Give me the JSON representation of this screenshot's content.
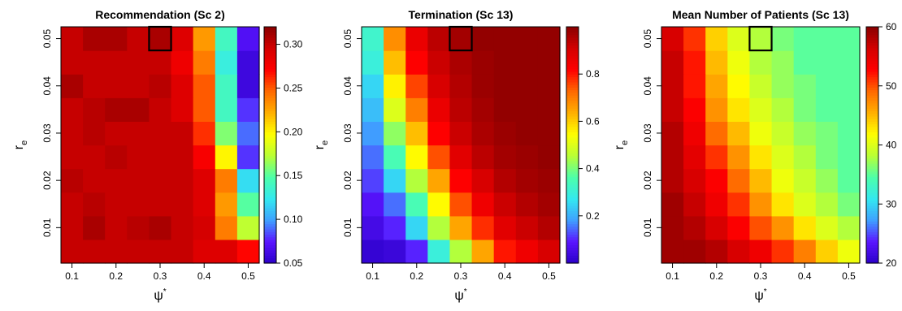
{
  "colors": {
    "colormap": [
      "#2b00c8",
      "#5a14ff",
      "#3fa0ff",
      "#33e8f0",
      "#4dffaa",
      "#b8ff36",
      "#ffff00",
      "#ffb000",
      "#ff6a00",
      "#ff0000",
      "#d40000",
      "#8b0000"
    ],
    "highlight_box": "#000000"
  },
  "chart_data": [
    {
      "type": "heatmap",
      "title": "Recommendation (Sc 2)",
      "xlabel": "ψ*",
      "ylabel": "r_e",
      "ylabel_main": "r",
      "ylabel_sub": "e",
      "x_values": [
        0.1,
        0.15,
        0.2,
        0.25,
        0.3,
        0.35,
        0.4,
        0.45,
        0.5
      ],
      "y_values": [
        0.005,
        0.01,
        0.015,
        0.02,
        0.025,
        0.03,
        0.035,
        0.04,
        0.045,
        0.05
      ],
      "x_ticks": [
        "0.1",
        "0.2",
        "0.3",
        "0.4",
        "0.5"
      ],
      "y_ticks": [
        "0.01",
        "0.02",
        "0.03",
        "0.04",
        "0.05"
      ],
      "z_range": [
        0.05,
        0.32
      ],
      "colorbar_ticks": [
        "0.05",
        "0.10",
        "0.15",
        "0.20",
        "0.25",
        "0.30"
      ],
      "highlight": {
        "x": 0.3,
        "y": 0.05
      },
      "z": [
        [
          0.3,
          0.3,
          0.3,
          0.3,
          0.3,
          0.3,
          0.29,
          0.29,
          0.27
        ],
        [
          0.3,
          0.31,
          0.3,
          0.305,
          0.31,
          0.3,
          0.295,
          0.24,
          0.175
        ],
        [
          0.3,
          0.305,
          0.3,
          0.3,
          0.3,
          0.3,
          0.29,
          0.23,
          0.15
        ],
        [
          0.305,
          0.3,
          0.3,
          0.3,
          0.3,
          0.3,
          0.29,
          0.24,
          0.12
        ],
        [
          0.3,
          0.3,
          0.305,
          0.3,
          0.3,
          0.3,
          0.275,
          0.2,
          0.08
        ],
        [
          0.3,
          0.305,
          0.3,
          0.3,
          0.3,
          0.3,
          0.26,
          0.16,
          0.09
        ],
        [
          0.3,
          0.305,
          0.31,
          0.31,
          0.3,
          0.29,
          0.25,
          0.14,
          0.08
        ],
        [
          0.31,
          0.3,
          0.3,
          0.3,
          0.305,
          0.29,
          0.25,
          0.14,
          0.06
        ],
        [
          0.3,
          0.3,
          0.3,
          0.3,
          0.3,
          0.28,
          0.24,
          0.13,
          0.06
        ],
        [
          0.3,
          0.31,
          0.31,
          0.3,
          0.31,
          0.29,
          0.23,
          0.14,
          0.07
        ]
      ]
    },
    {
      "type": "heatmap",
      "title": "Termination (Sc 13)",
      "xlabel": "ψ*",
      "ylabel": "r_e",
      "ylabel_main": "r",
      "ylabel_sub": "e",
      "x_values": [
        0.1,
        0.15,
        0.2,
        0.25,
        0.3,
        0.35,
        0.4,
        0.45,
        0.5
      ],
      "y_values": [
        0.005,
        0.01,
        0.015,
        0.02,
        0.025,
        0.03,
        0.035,
        0.04,
        0.045,
        0.05
      ],
      "x_ticks": [
        "0.1",
        "0.2",
        "0.3",
        "0.4",
        "0.5"
      ],
      "y_ticks": [
        "0.01",
        "0.02",
        "0.03",
        "0.04",
        "0.05"
      ],
      "z_range": [
        0.0,
        1.0
      ],
      "colorbar_ticks": [
        "0.2",
        "0.4",
        "0.6",
        "0.8"
      ],
      "highlight": {
        "x": 0.3,
        "y": 0.05
      },
      "z": [
        [
          0.02,
          0.03,
          0.1,
          0.3,
          0.45,
          0.65,
          0.8,
          0.85,
          0.9
        ],
        [
          0.05,
          0.1,
          0.25,
          0.45,
          0.65,
          0.78,
          0.88,
          0.92,
          0.95
        ],
        [
          0.08,
          0.15,
          0.35,
          0.55,
          0.75,
          0.85,
          0.92,
          0.95,
          0.97
        ],
        [
          0.12,
          0.25,
          0.45,
          0.65,
          0.82,
          0.9,
          0.95,
          0.97,
          0.98
        ],
        [
          0.15,
          0.35,
          0.55,
          0.75,
          0.88,
          0.94,
          0.97,
          0.98,
          0.99
        ],
        [
          0.18,
          0.42,
          0.62,
          0.82,
          0.92,
          0.96,
          0.98,
          0.99,
          0.99
        ],
        [
          0.22,
          0.5,
          0.7,
          0.86,
          0.94,
          0.97,
          0.99,
          0.99,
          0.99
        ],
        [
          0.25,
          0.56,
          0.76,
          0.9,
          0.95,
          0.98,
          0.99,
          0.99,
          0.99
        ],
        [
          0.3,
          0.62,
          0.82,
          0.92,
          0.96,
          0.98,
          0.99,
          0.99,
          0.99
        ],
        [
          0.32,
          0.68,
          0.86,
          0.94,
          0.97,
          0.99,
          0.99,
          0.99,
          0.99
        ]
      ]
    },
    {
      "type": "heatmap",
      "title": "Mean Number of Patients (Sc 13)",
      "xlabel": "ψ*",
      "ylabel": "r_e",
      "ylabel_main": "r",
      "ylabel_sub": "e",
      "x_values": [
        0.1,
        0.15,
        0.2,
        0.25,
        0.3,
        0.35,
        0.4,
        0.45,
        0.5
      ],
      "y_values": [
        0.005,
        0.01,
        0.015,
        0.02,
        0.025,
        0.03,
        0.035,
        0.04,
        0.045,
        0.05
      ],
      "x_ticks": [
        "0.1",
        "0.2",
        "0.3",
        "0.4",
        "0.5"
      ],
      "y_ticks": [
        "0.01",
        "0.02",
        "0.03",
        "0.04",
        "0.05"
      ],
      "z_range": [
        20,
        60
      ],
      "colorbar_ticks": [
        "20",
        "30",
        "40",
        "50",
        "60"
      ],
      "highlight": {
        "x": 0.3,
        "y": 0.05
      },
      "z": [
        [
          59,
          59,
          58,
          56,
          54,
          51,
          48,
          44,
          41
        ],
        [
          59,
          58,
          56,
          53,
          50,
          47,
          43,
          40,
          38
        ],
        [
          59,
          57,
          54,
          51,
          47,
          43,
          40,
          38,
          36
        ],
        [
          58,
          56,
          53,
          49,
          45,
          41,
          39,
          37,
          35
        ],
        [
          58,
          55,
          51,
          47,
          43,
          40,
          38,
          36,
          35
        ],
        [
          58,
          54,
          49,
          45,
          41,
          39,
          37,
          36,
          35
        ],
        [
          57,
          53,
          47,
          43,
          40,
          38,
          36,
          35,
          35
        ],
        [
          57,
          52,
          46,
          42,
          39,
          37,
          36,
          35,
          35
        ],
        [
          57,
          52,
          45,
          41,
          38,
          37,
          35,
          35,
          35
        ],
        [
          56,
          51,
          44,
          40,
          38,
          36,
          35,
          35,
          35
        ]
      ]
    }
  ]
}
